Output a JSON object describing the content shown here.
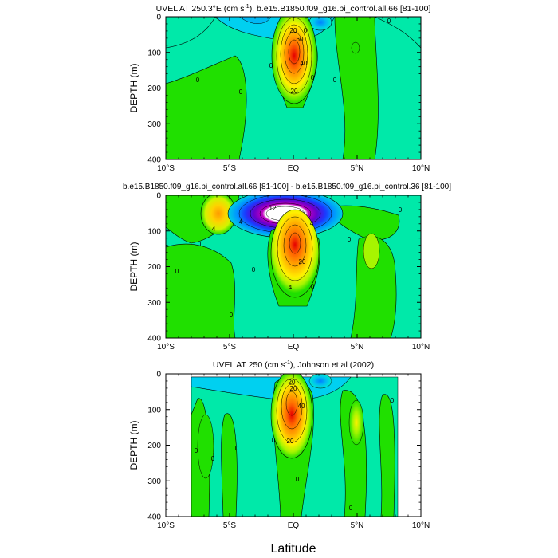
{
  "figure": {
    "shared_xlabel": "Latitude",
    "ylabel": "DEPTH (m)",
    "xticks": [
      "10°S",
      "5°S",
      "EQ",
      "5°N",
      "10°N"
    ],
    "yticks": [
      "0",
      "100",
      "200",
      "300",
      "400"
    ]
  },
  "colors": {
    "background": "#00e9a9",
    "contour_line": "#000000"
  },
  "chart_data": [
    {
      "type": "heatmap",
      "title_main": "UVEL AT 250.3°E (cm s",
      "title_sup": "-1",
      "title_rest": "), b.e15.B1850.f09_g16.pi_control.all.66 [81-100]",
      "xlabel": "",
      "ylabel": "DEPTH (m)",
      "xlim": [
        -10,
        10
      ],
      "ylim": [
        400,
        0
      ],
      "contour_labels": [
        "20",
        "60",
        "40",
        "20",
        "0",
        "0",
        "0",
        "0",
        "0",
        "0",
        "0"
      ],
      "features": [
        {
          "name": "eastward-core",
          "lat": 0.0,
          "depth": 100,
          "peak": 90
        }
      ]
    },
    {
      "type": "heatmap",
      "title_main": "b.e15.B1850.f09_g16.pi_control.all.66 [81-100] - b.e15.B1850.f09_g16.pi_control.36 [81-100]",
      "title_sup": "",
      "title_rest": "",
      "xlabel": "",
      "ylabel": "DEPTH (m)",
      "xlim": [
        -10,
        10
      ],
      "ylim": [
        400,
        0
      ],
      "contour_labels": [
        "4",
        "12",
        "4",
        "4",
        "20",
        "4",
        "0",
        "0",
        "0",
        "0",
        "0",
        "0",
        "0"
      ],
      "features": [
        {
          "name": "negative-core",
          "lat": -1.0,
          "depth": 45,
          "peak": -40
        },
        {
          "name": "positive-core",
          "lat": 0.0,
          "depth": 120,
          "peak": 28
        }
      ]
    },
    {
      "type": "heatmap",
      "title_main": "UVEL AT 250 (cm s",
      "title_sup": "-1",
      "title_rest": "), Johnson et al (2002)",
      "xlabel": "Latitude",
      "ylabel": "DEPTH (m)",
      "xlim": [
        -10,
        10
      ],
      "ylim": [
        400,
        0
      ],
      "data_extent_lat": [
        -8,
        8.2
      ],
      "data_extent_depth": [
        10,
        400
      ],
      "contour_labels": [
        "20",
        "20",
        "40",
        "20",
        "0",
        "0",
        "0",
        "0",
        "0",
        "0",
        "0"
      ],
      "features": [
        {
          "name": "eastward-core",
          "lat": -0.2,
          "depth": 80,
          "peak": 80
        }
      ]
    }
  ]
}
